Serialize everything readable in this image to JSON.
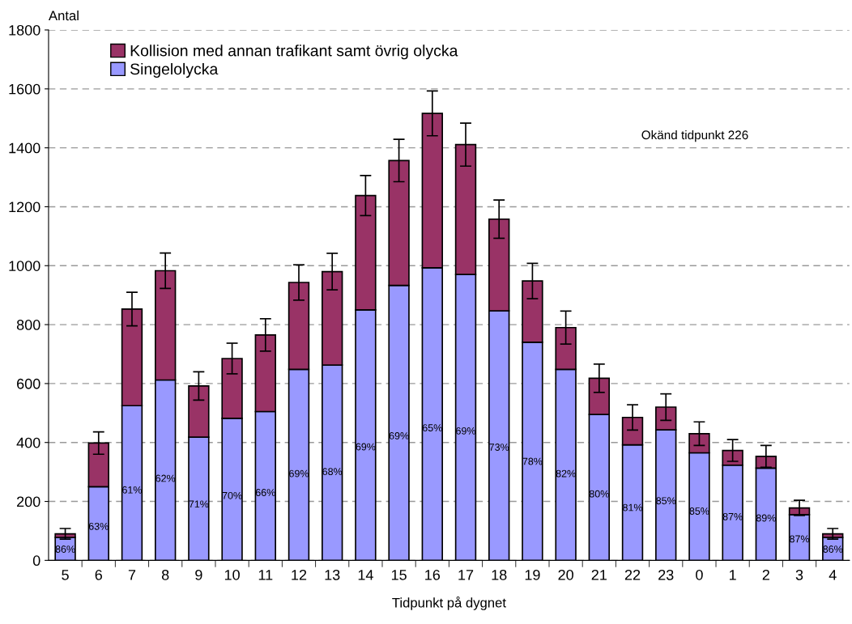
{
  "chart_data": {
    "type": "bar",
    "stacked": true,
    "ylabel": "Antal",
    "xlabel": "Tidpunkt på dygnet",
    "categories": [
      "5",
      "6",
      "7",
      "8",
      "9",
      "10",
      "11",
      "12",
      "13",
      "14",
      "15",
      "16",
      "17",
      "18",
      "19",
      "20",
      "21",
      "22",
      "23",
      "0",
      "1",
      "2",
      "3",
      "4"
    ],
    "series": [
      {
        "name": "Singelolycka",
        "color": "#9999ff",
        "values": [
          78,
          250,
          525,
          612,
          418,
          482,
          505,
          648,
          663,
          850,
          933,
          993,
          970,
          847,
          740,
          648,
          495,
          392,
          443,
          365,
          323,
          313,
          155,
          78
        ]
      },
      {
        "name": "Kollision med annan trafikant samt övrig olycka",
        "color": "#993366",
        "values": [
          12,
          148,
          328,
          371,
          174,
          203,
          260,
          295,
          317,
          388,
          424,
          524,
          441,
          311,
          208,
          142,
          123,
          93,
          77,
          65,
          50,
          40,
          23,
          12
        ],
        "errors": [
          18,
          38,
          57,
          60,
          48,
          52,
          55,
          60,
          62,
          68,
          72,
          76,
          73,
          65,
          60,
          56,
          48,
          43,
          45,
          40,
          37,
          37,
          26,
          18
        ]
      }
    ],
    "ylim": [
      0,
      1800
    ],
    "yticks": [
      0,
      200,
      400,
      600,
      800,
      1000,
      1200,
      1400,
      1600,
      1800
    ],
    "grid": "y",
    "legend": "top left",
    "annotations": [
      "Okänd tidpunkt 226",
      "86%",
      "63%",
      "61%",
      "62%",
      "71%",
      "70%",
      "66%",
      "69%",
      "68%",
      "69%",
      "69%",
      "65%",
      "69%",
      "73%",
      "78%",
      "82%",
      "80%",
      "81%",
      "85%",
      "85%",
      "87%",
      "89%",
      "87%",
      "86%"
    ]
  }
}
